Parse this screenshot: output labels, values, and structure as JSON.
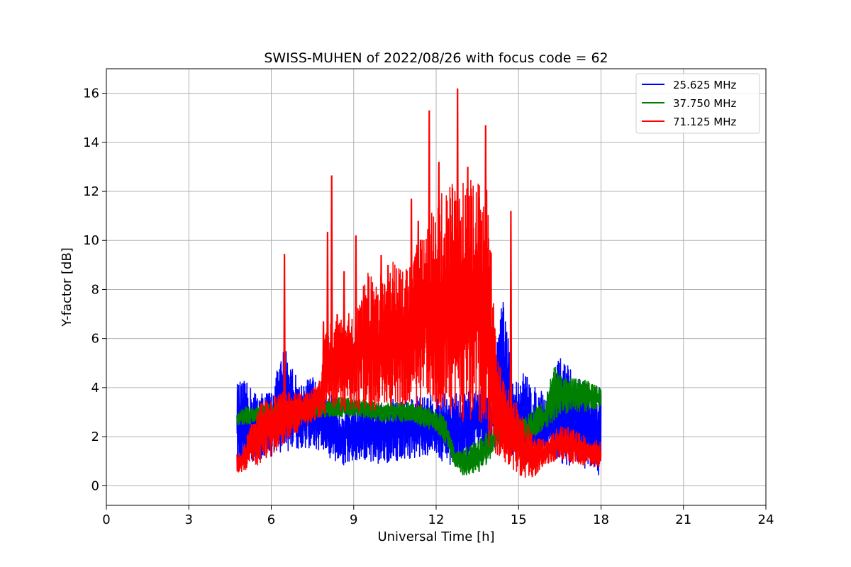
{
  "chart_data": {
    "type": "line",
    "title": "SWISS-MUHEN of 2022/08/26 with focus code = 62",
    "xlabel": "Universal Time [h]",
    "ylabel": "Y-factor [dB]",
    "xlim": [
      0,
      24
    ],
    "ylim": [
      -0.8,
      17
    ],
    "xticks": [
      0,
      3,
      6,
      9,
      12,
      15,
      18,
      21,
      24
    ],
    "yticks": [
      0,
      2,
      4,
      6,
      8,
      10,
      12,
      14,
      16
    ],
    "grid": true,
    "legend_position": "top-right",
    "series": [
      {
        "name": "25.625 MHz",
        "color": "#0000ff",
        "envelope": {
          "x": [
            4.75,
            5.0,
            5.5,
            6.0,
            6.5,
            7.0,
            7.5,
            7.9,
            8.5,
            9.0,
            9.5,
            10.0,
            10.5,
            11.0,
            11.5,
            12.0,
            12.5,
            13.0,
            13.5,
            14.0,
            14.4,
            14.8,
            15.2,
            15.6,
            16.0,
            16.5,
            17.0,
            17.5,
            18.0
          ],
          "low": [
            0.9,
            0.8,
            1.0,
            1.2,
            1.4,
            1.5,
            1.5,
            1.3,
            0.8,
            0.8,
            0.9,
            0.9,
            1.0,
            1.1,
            1.2,
            1.2,
            0.7,
            0.8,
            1.2,
            1.4,
            1.5,
            1.2,
            1.0,
            1.0,
            1.2,
            0.9,
            0.8,
            0.7,
            0.2
          ],
          "high": [
            4.2,
            4.3,
            3.8,
            3.9,
            5.8,
            4.2,
            4.5,
            4.0,
            3.4,
            3.5,
            3.3,
            3.3,
            3.6,
            3.6,
            3.7,
            3.7,
            3.8,
            3.8,
            4.0,
            3.8,
            8.3,
            4.2,
            4.7,
            4.0,
            3.8,
            5.3,
            4.6,
            4.2,
            4.1
          ]
        }
      },
      {
        "name": "37.750 MHz",
        "color": "#008000",
        "envelope": {
          "x": [
            4.75,
            5.0,
            5.5,
            6.0,
            6.5,
            7.0,
            7.5,
            7.9,
            8.5,
            9.0,
            9.5,
            10.0,
            10.5,
            11.0,
            11.5,
            12.0,
            12.4,
            12.7,
            13.0,
            13.5,
            14.0,
            14.3,
            14.8,
            15.2,
            15.6,
            16.0,
            16.3,
            16.5,
            17.0,
            17.5,
            18.0
          ],
          "low": [
            2.4,
            2.5,
            2.5,
            2.4,
            2.5,
            2.6,
            2.7,
            2.8,
            2.8,
            2.8,
            2.7,
            2.6,
            2.6,
            2.6,
            2.4,
            2.2,
            1.6,
            0.6,
            0.4,
            0.5,
            1.0,
            1.8,
            1.4,
            1.6,
            2.0,
            2.3,
            2.6,
            2.9,
            3.0,
            3.0,
            3.2
          ],
          "high": [
            3.0,
            3.2,
            3.3,
            3.4,
            3.4,
            3.4,
            3.5,
            3.5,
            3.6,
            3.6,
            3.5,
            3.4,
            3.4,
            3.4,
            3.3,
            3.1,
            2.7,
            1.4,
            1.5,
            1.9,
            2.3,
            2.6,
            2.7,
            2.8,
            3.2,
            3.6,
            5.0,
            4.5,
            4.4,
            4.3,
            4.0
          ]
        }
      },
      {
        "name": "71.125 MHz",
        "color": "#ff0000",
        "envelope": {
          "x": [
            4.75,
            5.0,
            5.5,
            6.0,
            6.5,
            7.0,
            7.5,
            7.8,
            8.0,
            8.5,
            9.0,
            9.5,
            10.0,
            10.5,
            11.0,
            11.5,
            12.0,
            12.5,
            13.0,
            13.5,
            13.9,
            14.2,
            14.5,
            14.8,
            15.0,
            15.5,
            16.0,
            16.5,
            17.0,
            17.5,
            18.0
          ],
          "low": [
            0.5,
            0.6,
            0.8,
            1.2,
            1.8,
            2.2,
            2.6,
            2.8,
            2.9,
            3.0,
            3.0,
            3.0,
            3.1,
            3.1,
            3.2,
            3.2,
            3.0,
            2.8,
            2.6,
            2.4,
            1.6,
            1.2,
            0.8,
            0.6,
            0.4,
            0.2,
            0.9,
            1.0,
            0.9,
            0.8,
            0.7
          ],
          "high": [
            1.3,
            1.6,
            3.4,
            3.6,
            3.9,
            3.8,
            3.9,
            4.5,
            6.5,
            6.8,
            7.2,
            8.7,
            8.6,
            9.2,
            9.5,
            10.4,
            11.6,
            12.4,
            12.6,
            12.4,
            12.2,
            5.4,
            4.2,
            3.8,
            3.2,
            2.2,
            1.8,
            2.5,
            2.3,
            2.0,
            1.8
          ]
        },
        "spikes": [
          {
            "x": 6.48,
            "y": 9.45
          },
          {
            "x": 7.9,
            "y": 6.7
          },
          {
            "x": 8.05,
            "y": 10.35
          },
          {
            "x": 8.2,
            "y": 12.65
          },
          {
            "x": 8.4,
            "y": 7.0
          },
          {
            "x": 8.65,
            "y": 8.75
          },
          {
            "x": 9.08,
            "y": 10.2
          },
          {
            "x": 10.0,
            "y": 9.4
          },
          {
            "x": 10.25,
            "y": 9.0
          },
          {
            "x": 11.1,
            "y": 11.7
          },
          {
            "x": 11.35,
            "y": 10.8
          },
          {
            "x": 11.75,
            "y": 15.3
          },
          {
            "x": 12.1,
            "y": 13.2
          },
          {
            "x": 12.78,
            "y": 16.2
          },
          {
            "x": 13.15,
            "y": 13.0
          },
          {
            "x": 13.8,
            "y": 14.7
          },
          {
            "x": 14.72,
            "y": 11.2
          }
        ]
      }
    ]
  }
}
